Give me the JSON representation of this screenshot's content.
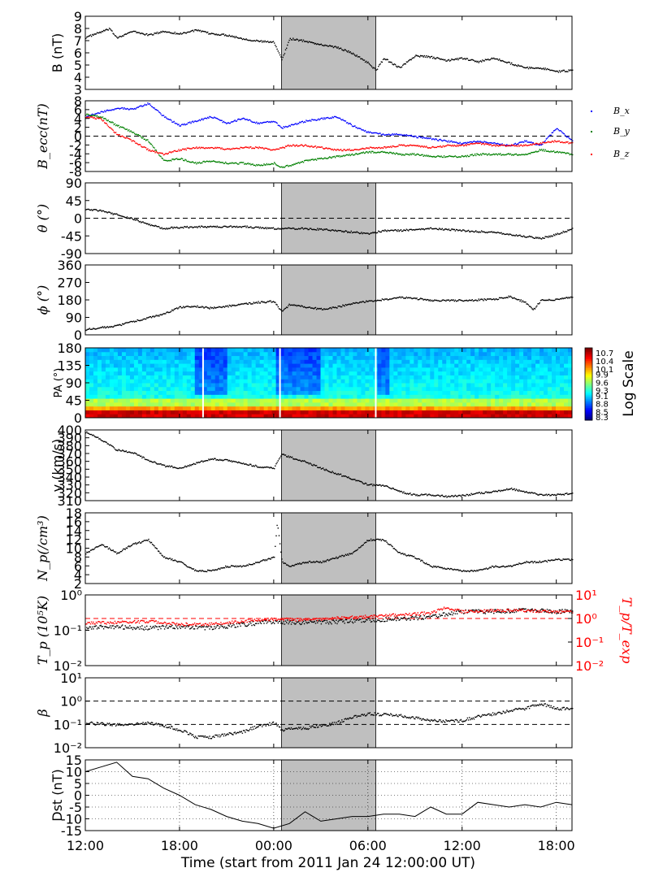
{
  "chart_data": {
    "type": "line",
    "xlabel": "Time (start from 2011 Jan 24 12:00:00 UT)",
    "x_ticks": [
      "12:00",
      "18:00",
      "00:00",
      "06:00",
      "12:00",
      "18:00"
    ],
    "x_tick_hours": [
      0,
      6,
      12,
      18,
      24,
      30
    ],
    "xlim_hours": [
      0,
      31
    ],
    "shaded_interval_hours": [
      12.5,
      18.5
    ],
    "colors": {
      "black": "#000000",
      "bx": "#0000ff",
      "by": "#008000",
      "bz": "#ff0000",
      "shade": "#bfbfbf"
    },
    "panels": [
      {
        "id": "B",
        "ylabel": "B (nT)",
        "ylim": [
          3,
          9
        ],
        "yticks": [
          "3",
          "4",
          "5",
          "6",
          "7",
          "8",
          "9"
        ],
        "shaded": true,
        "series": [
          {
            "color": "#000000",
            "x": [
              0,
              1.5,
              2,
              3,
              4,
              5,
              6,
              7,
              8,
              9,
              10,
              11,
              12,
              12.5,
              13,
              14,
              15,
              16,
              17,
              18,
              18.5,
              19,
              20,
              21,
              22,
              23,
              24,
              25,
              26,
              27,
              28,
              29,
              30,
              31
            ],
            "values": [
              7.3,
              8.0,
              7.3,
              7.8,
              7.5,
              7.8,
              7.6,
              7.9,
              7.6,
              7.5,
              7.2,
              7.0,
              6.9,
              5.5,
              7.2,
              7.0,
              6.7,
              6.5,
              6.0,
              5.2,
              4.6,
              5.6,
              4.8,
              5.8,
              5.7,
              5.4,
              5.6,
              5.3,
              5.6,
              5.2,
              4.8,
              4.8,
              4.5,
              4.6
            ]
          }
        ]
      },
      {
        "id": "Becc",
        "ylabel": "B_ecc(nT)",
        "ylim": [
          -8,
          8
        ],
        "yticks": [
          "-8",
          "-6",
          "-4",
          "-2",
          "0",
          "2",
          "4",
          "6",
          "8"
        ],
        "ref_lines": [
          0
        ],
        "shaded": false,
        "legend": [
          "B_x",
          "B_y",
          "B_z"
        ],
        "series": [
          {
            "name": "B_x",
            "color": "#0000ff",
            "x": [
              0,
              1,
              2,
              3,
              4,
              5,
              6,
              7,
              8,
              9,
              10,
              11,
              12,
              12.5,
              13,
              14,
              15,
              16,
              17,
              18,
              19,
              20,
              21,
              22,
              23,
              24,
              25,
              26,
              27,
              28,
              29,
              30,
              31
            ],
            "values": [
              4.5,
              5.5,
              6.5,
              6.2,
              7.5,
              4.5,
              2.5,
              3.5,
              4.5,
              3.0,
              4.2,
              3.0,
              3.5,
              2.0,
              2.5,
              3.5,
              4.0,
              4.5,
              2.5,
              1.0,
              0.5,
              0.5,
              0.0,
              -0.5,
              -1.0,
              -1.5,
              -1.0,
              -1.5,
              -2.0,
              -1.0,
              -2.0,
              2.0,
              -1.0
            ]
          },
          {
            "name": "B_y",
            "color": "#008000",
            "x": [
              0,
              1,
              2,
              3,
              4,
              5,
              6,
              7,
              8,
              9,
              10,
              11,
              12,
              12.5,
              13,
              14,
              15,
              16,
              17,
              18,
              19,
              20,
              21,
              22,
              23,
              24,
              25,
              26,
              27,
              28,
              29,
              30,
              31
            ],
            "values": [
              5.0,
              4.5,
              2.5,
              1.0,
              -1.0,
              -5.5,
              -5.0,
              -6.0,
              -5.5,
              -6.0,
              -6.0,
              -6.5,
              -6.0,
              -7.0,
              -6.5,
              -5.5,
              -5.0,
              -4.5,
              -4.0,
              -3.5,
              -3.5,
              -4.0,
              -4.0,
              -4.5,
              -4.5,
              -4.5,
              -4.0,
              -4.0,
              -4.0,
              -4.0,
              -3.0,
              -3.5,
              -4.0
            ]
          },
          {
            "name": "B_z",
            "color": "#ff0000",
            "x": [
              0,
              1,
              2,
              3,
              4,
              5,
              6,
              7,
              8,
              9,
              10,
              11,
              12,
              12.5,
              13,
              14,
              15,
              16,
              17,
              18,
              19,
              20,
              21,
              22,
              23,
              24,
              25,
              26,
              27,
              28,
              29,
              30,
              31
            ],
            "values": [
              4.5,
              4.0,
              0.5,
              -1.0,
              -3.0,
              -4.0,
              -3.0,
              -2.5,
              -2.5,
              -2.8,
              -2.5,
              -2.5,
              -3.0,
              -2.5,
              -2.0,
              -2.0,
              -2.5,
              -3.0,
              -3.0,
              -2.5,
              -2.5,
              -2.0,
              -2.0,
              -2.5,
              -2.0,
              -2.0,
              -1.5,
              -2.0,
              -2.0,
              -2.0,
              -1.5,
              -1.0,
              -1.5
            ]
          }
        ]
      },
      {
        "id": "theta",
        "ylabel": "θ (°)",
        "ylim": [
          -90,
          90
        ],
        "yticks": [
          "-90",
          "-45",
          "0",
          "45",
          "90"
        ],
        "ref_lines": [
          0
        ],
        "shaded": true,
        "series": [
          {
            "color": "#000000",
            "x": [
              0,
              1,
              2,
              3,
              4,
              5,
              6,
              8,
              10,
              12,
              14,
              16,
              18,
              19,
              20,
              22,
              24,
              26,
              28,
              29,
              30,
              31
            ],
            "values": [
              25,
              20,
              10,
              0,
              -15,
              -25,
              -22,
              -20,
              -20,
              -25,
              -25,
              -30,
              -38,
              -30,
              -30,
              -25,
              -30,
              -35,
              -45,
              -50,
              -40,
              -25
            ]
          }
        ]
      },
      {
        "id": "phi",
        "ylabel": "ϕ (°)",
        "ylim": [
          0,
          360
        ],
        "yticks": [
          "0",
          "90",
          "180",
          "270",
          "360"
        ],
        "shaded": true,
        "series": [
          {
            "color": "#000000",
            "x": [
              0,
              1,
              2,
              3,
              4,
              5,
              6,
              7,
              8,
              9,
              10,
              11,
              12,
              12.5,
              13,
              14,
              15,
              16,
              17,
              18,
              19,
              20,
              21,
              22,
              24,
              26,
              27,
              28,
              28.5,
              29,
              30,
              31
            ],
            "values": [
              30,
              40,
              50,
              70,
              90,
              110,
              145,
              150,
              140,
              150,
              160,
              170,
              175,
              120,
              160,
              145,
              135,
              145,
              165,
              175,
              185,
              195,
              190,
              180,
              180,
              185,
              200,
              170,
              130,
              180,
              185,
              195
            ]
          }
        ]
      },
      {
        "id": "PA",
        "type": "heatmap",
        "ylabel": "PA (°)",
        "ylim": [
          0,
          180
        ],
        "yticks": [
          "0",
          "45",
          "90",
          "135",
          "180"
        ],
        "shaded": false,
        "colorbar_label": "Log Scale",
        "colorbar_ticks": [
          "8.3",
          "8.5",
          "8.8",
          "9.1",
          "9.3",
          "9.6",
          "9.9",
          "10.1",
          "10.4",
          "10.7"
        ],
        "colorbar_range": [
          8.2,
          10.9
        ]
      },
      {
        "id": "v",
        "ylabel": "v (km/s)",
        "ylim": [
          310,
          400
        ],
        "yticks": [
          "310",
          "320",
          "330",
          "340",
          "350",
          "360",
          "370",
          "380",
          "390",
          "400"
        ],
        "shaded": true,
        "series": [
          {
            "color": "#000000",
            "x": [
              0,
              1,
              2,
              3,
              4,
              5,
              6,
              7,
              8,
              9,
              10,
              11,
              12,
              12.5,
              13,
              14,
              15,
              16,
              17,
              18,
              19,
              20,
              21,
              22,
              23,
              24,
              25,
              26,
              27,
              28,
              29,
              30,
              31
            ],
            "values": [
              398,
              388,
              375,
              372,
              362,
              355,
              352,
              358,
              364,
              362,
              358,
              354,
              352,
              370,
              366,
              360,
              352,
              345,
              338,
              331,
              330,
              322,
              318,
              318,
              316,
              317,
              320,
              322,
              326,
              322,
              318,
              318,
              320
            ]
          }
        ]
      },
      {
        "id": "Np",
        "ylabel": "N_p(/cm³)",
        "ylim": [
          2,
          18
        ],
        "yticks": [
          "2",
          "4",
          "6",
          "8",
          "10",
          "12",
          "14",
          "16",
          "18"
        ],
        "shaded": true,
        "series": [
          {
            "color": "#000000",
            "x": [
              0,
              1,
              2,
              3,
              4,
              4.5,
              5,
              6,
              7,
              8,
              9,
              10,
              11,
              12,
              12.2,
              12.5,
              13,
              14,
              15,
              16,
              17,
              18,
              19,
              20,
              21,
              22,
              23,
              24,
              25,
              26,
              27,
              28,
              29,
              30,
              31
            ],
            "values": [
              9,
              11,
              9,
              11,
              12,
              10,
              8,
              7,
              5,
              5,
              6,
              6,
              7,
              8,
              16,
              7,
              6,
              7,
              7,
              8,
              9,
              12,
              12,
              9,
              8,
              6,
              5.5,
              5,
              5,
              6,
              6,
              7,
              7,
              7.5,
              7.5
            ]
          }
        ]
      },
      {
        "id": "Tp",
        "ylabel": "T_p (10⁵K)",
        "ylabel_right": "T_p/T_exp",
        "log": true,
        "ylim": [
          0.01,
          1
        ],
        "yticks": [
          "10⁻²",
          "10⁻¹",
          "10⁰"
        ],
        "yticks_right": [
          "10⁻²",
          "10⁻¹",
          "10⁰",
          "10¹"
        ],
        "ylim_right": [
          0.01,
          10
        ],
        "ref_line_right": 1,
        "shaded": true,
        "series": [
          {
            "color": "#000000",
            "x": [
              0,
              2,
              4,
              6,
              8,
              10,
              12,
              14,
              16,
              18,
              20,
              22,
              24,
              26,
              28,
              30,
              31
            ],
            "values": [
              0.12,
              0.13,
              0.12,
              0.13,
              0.12,
              0.15,
              0.18,
              0.17,
              0.18,
              0.2,
              0.22,
              0.25,
              0.35,
              0.35,
              0.38,
              0.35,
              0.35
            ]
          },
          {
            "color": "#ff0000",
            "axis": "right",
            "x": [
              0,
              2,
              4,
              6,
              8,
              10,
              12,
              14,
              16,
              18,
              20,
              22,
              23,
              24,
              26,
              28,
              30,
              31
            ],
            "values": [
              0.7,
              0.7,
              0.8,
              0.6,
              0.6,
              0.8,
              1.0,
              0.9,
              1.1,
              1.3,
              1.5,
              1.8,
              3.0,
              2.0,
              2.3,
              2.3,
              2.0,
              2.0
            ]
          }
        ]
      },
      {
        "id": "beta",
        "ylabel": "β",
        "log": true,
        "ylim": [
          0.01,
          10
        ],
        "yticks": [
          "10⁻²",
          "10⁻¹",
          "10⁰",
          "10¹"
        ],
        "ref_lines": [
          1,
          0.1
        ],
        "shaded": true,
        "series": [
          {
            "color": "#000000",
            "x": [
              0,
              2,
              4,
              6,
              7,
              8,
              10,
              12,
              12.5,
              13,
              14,
              16,
              18,
              20,
              22,
              24,
              26,
              28,
              29,
              30,
              31
            ],
            "values": [
              0.12,
              0.1,
              0.12,
              0.06,
              0.03,
              0.03,
              0.05,
              0.12,
              0.06,
              0.07,
              0.07,
              0.12,
              0.3,
              0.25,
              0.15,
              0.15,
              0.3,
              0.5,
              0.8,
              0.5,
              0.5
            ]
          }
        ]
      },
      {
        "id": "Dst",
        "ylabel": "Dst (nT)",
        "ylim": [
          -15,
          15
        ],
        "yticks": [
          "-15",
          "-10",
          "-5",
          "0",
          "5",
          "10",
          "15"
        ],
        "grid": true,
        "shaded": true,
        "series": [
          {
            "color": "#000000",
            "connected": true,
            "x": [
              0,
              1,
              2,
              3,
              4,
              5,
              6,
              7,
              8,
              9,
              10,
              11,
              12,
              13,
              14,
              15,
              16,
              17,
              18,
              19,
              20,
              21,
              22,
              23,
              24,
              25,
              26,
              27,
              28,
              29,
              30,
              31
            ],
            "values": [
              10,
              12,
              14,
              8,
              7,
              3,
              0,
              -4,
              -6,
              -9,
              -11,
              -12,
              -14,
              -12,
              -7,
              -11,
              -10,
              -9,
              -9,
              -8,
              -8,
              -9,
              -5,
              -8,
              -8,
              -3,
              -4,
              -5,
              -4,
              -5,
              -3,
              -4
            ]
          }
        ]
      }
    ]
  }
}
